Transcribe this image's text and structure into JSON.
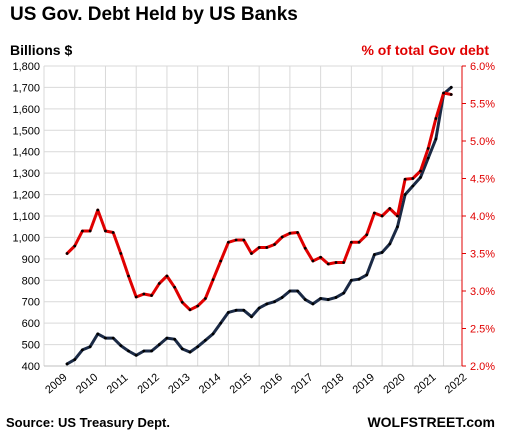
{
  "chart_data": {
    "type": "line",
    "title": "US Gov. Debt Held by US Banks",
    "ylabel_left": "Billions  $",
    "ylabel_right": "% of total Gov debt",
    "source": "Source: US Treasury Dept.",
    "brand": "WOLFSTREET.com",
    "x_ticks": [
      "2009",
      "2010",
      "2011",
      "2012",
      "2013",
      "2014",
      "2015",
      "2016",
      "2017",
      "2018",
      "2019",
      "2020",
      "2021",
      "2022"
    ],
    "y_left_ticks": [
      "400",
      "500",
      "600",
      "700",
      "800",
      "900",
      "1,000",
      "1,100",
      "1,200",
      "1,300",
      "1,400",
      "1,500",
      "1,600",
      "1,700",
      "1,800"
    ],
    "y_right_ticks": [
      "2.0%",
      "2.5%",
      "3.0%",
      "3.5%",
      "4.0%",
      "4.5%",
      "5.0%",
      "5.5%",
      "6.0%"
    ],
    "ylim_left": [
      400,
      1800
    ],
    "ylim_right": [
      2.0,
      6.0
    ],
    "xlim": [
      2009,
      2022.6
    ],
    "grid": true,
    "series": [
      {
        "axis": "left",
        "color": "#1b2a45",
        "x": [
          2009.75,
          2010.0,
          2010.25,
          2010.5,
          2010.75,
          2011.0,
          2011.25,
          2011.5,
          2011.75,
          2012.0,
          2012.25,
          2012.5,
          2012.75,
          2013.0,
          2013.25,
          2013.5,
          2013.75,
          2014.0,
          2014.25,
          2014.5,
          2014.75,
          2015.0,
          2015.25,
          2015.5,
          2015.75,
          2016.0,
          2016.25,
          2016.5,
          2016.75,
          2017.0,
          2017.25,
          2017.5,
          2017.75,
          2018.0,
          2018.25,
          2018.5,
          2018.75,
          2019.0,
          2019.25,
          2019.5,
          2019.75,
          2020.0,
          2020.25,
          2020.5,
          2020.75,
          2021.0,
          2021.25,
          2021.5,
          2021.75,
          2022.0,
          2022.25
        ],
        "values": [
          410,
          430,
          475,
          490,
          550,
          530,
          530,
          495,
          470,
          450,
          470,
          470,
          500,
          530,
          525,
          480,
          465,
          490,
          520,
          550,
          600,
          650,
          660,
          660,
          630,
          670,
          690,
          700,
          720,
          750,
          750,
          710,
          690,
          715,
          710,
          720,
          740,
          800,
          805,
          825,
          920,
          930,
          970,
          1050,
          1200,
          1240,
          1280,
          1370,
          1460,
          1670,
          1700
        ]
      },
      {
        "axis": "right",
        "color": "#e00000",
        "x": [
          2009.75,
          2010.0,
          2010.25,
          2010.5,
          2010.75,
          2011.0,
          2011.25,
          2011.5,
          2011.75,
          2012.0,
          2012.25,
          2012.5,
          2012.75,
          2013.0,
          2013.25,
          2013.5,
          2013.75,
          2014.0,
          2014.25,
          2014.5,
          2014.75,
          2015.0,
          2015.25,
          2015.5,
          2015.75,
          2016.0,
          2016.25,
          2016.5,
          2016.75,
          2017.0,
          2017.25,
          2017.5,
          2017.75,
          2018.0,
          2018.25,
          2018.5,
          2018.75,
          2019.0,
          2019.25,
          2019.5,
          2019.75,
          2020.0,
          2020.25,
          2020.5,
          2020.75,
          2021.0,
          2021.25,
          2021.5,
          2021.75,
          2022.0,
          2022.25
        ],
        "values": [
          3.5,
          3.6,
          3.8,
          3.8,
          4.08,
          3.8,
          3.78,
          3.5,
          3.2,
          2.92,
          2.96,
          2.94,
          3.1,
          3.2,
          3.05,
          2.85,
          2.75,
          2.8,
          2.9,
          3.15,
          3.4,
          3.65,
          3.68,
          3.68,
          3.5,
          3.58,
          3.58,
          3.62,
          3.72,
          3.77,
          3.78,
          3.57,
          3.4,
          3.45,
          3.36,
          3.38,
          3.38,
          3.65,
          3.65,
          3.75,
          4.04,
          4.0,
          4.1,
          4.0,
          4.49,
          4.5,
          4.6,
          4.9,
          5.3,
          5.64,
          5.62
        ]
      }
    ]
  }
}
